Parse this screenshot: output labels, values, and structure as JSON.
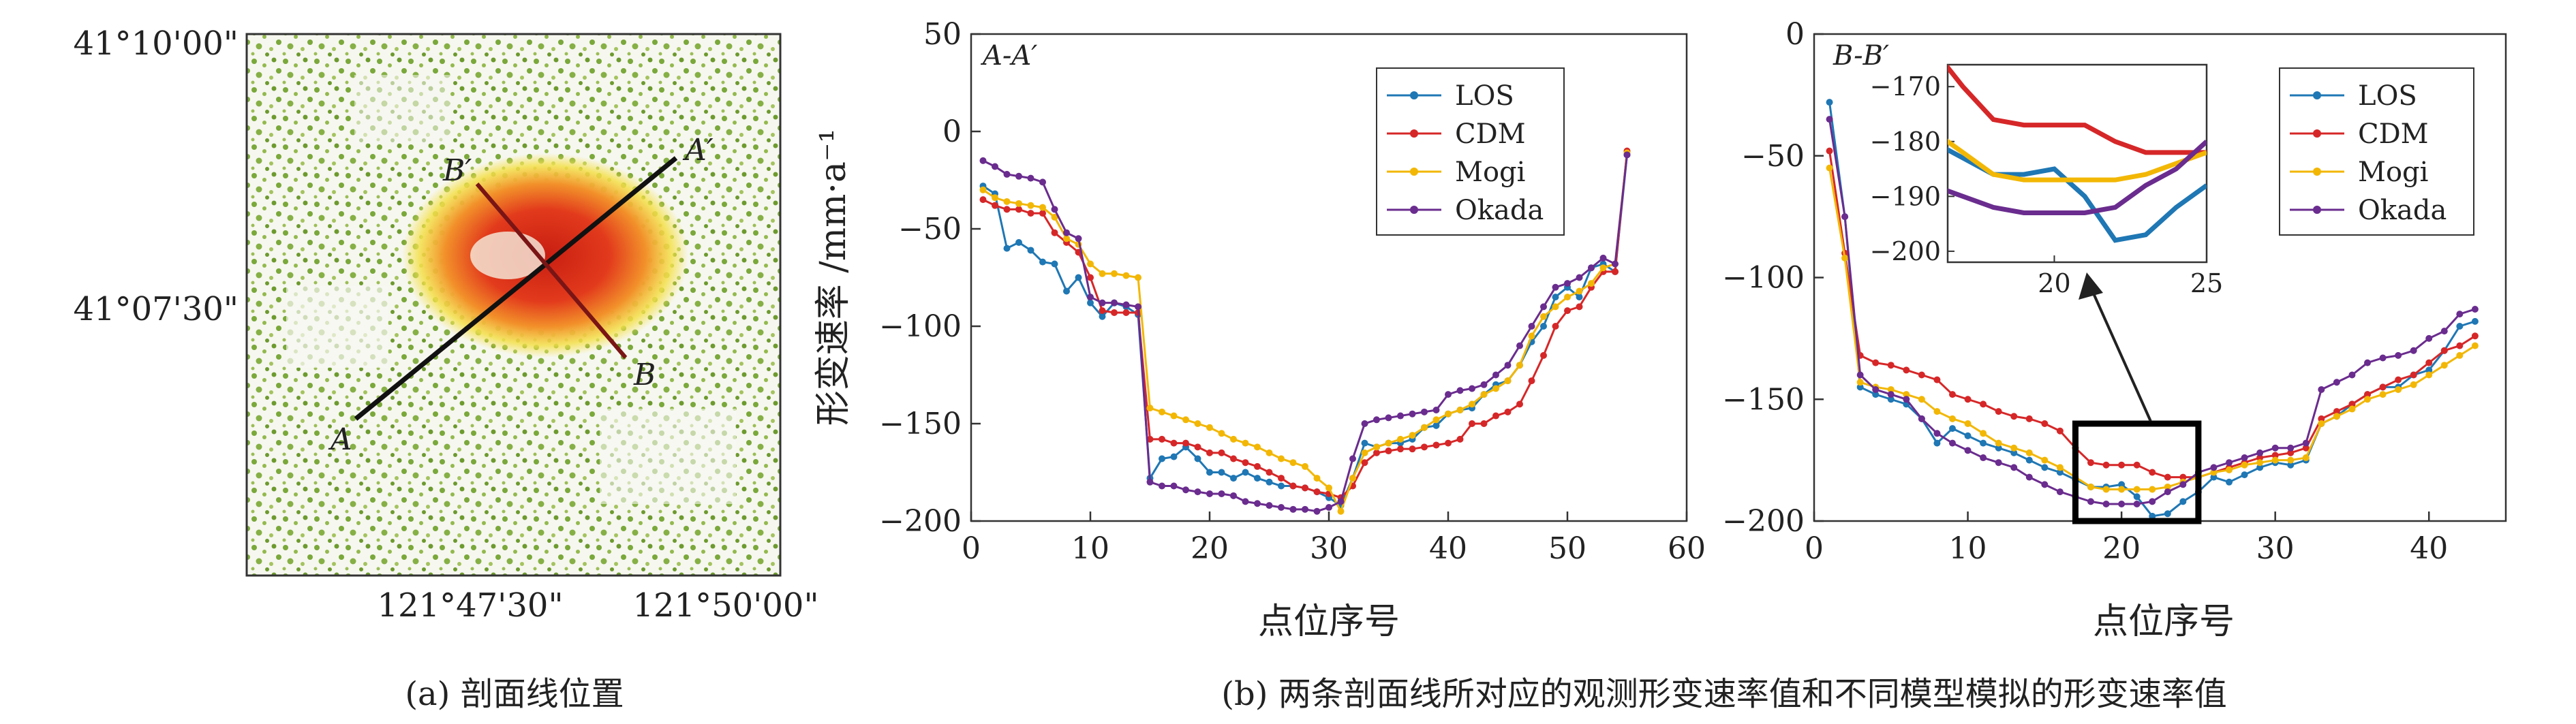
{
  "panel_a": {
    "caption": "(a) 剖面线位置",
    "lat_labels": [
      "41°10'00\"",
      "41°07'30\""
    ],
    "lon_labels": [
      "121°47'30\"",
      "121°50'00\""
    ],
    "profile_labels": {
      "A": "A",
      "A_prime": "A′",
      "B": "B",
      "B_prime": "B′"
    }
  },
  "caption_b": "(b) 两条剖面线所对应的观测形变速率值和不同模型模拟的形变速率值",
  "colors": {
    "LOS": "#1f77b4",
    "CDM": "#d62728",
    "Mogi": "#f2b705",
    "Okada": "#6a2c8e",
    "zoom_box": "#000000"
  },
  "chart_data": [
    {
      "type": "line",
      "title": "A-A′",
      "xlabel": "点位序号",
      "ylabel": "形变速率 /mm·a⁻¹",
      "xlim": [
        0,
        60
      ],
      "ylim": [
        -200,
        50
      ],
      "xticks": [
        0,
        10,
        20,
        30,
        40,
        50,
        60
      ],
      "yticks": [
        50,
        0,
        -50,
        -100,
        -150,
        -200
      ],
      "legend_position": "top-right",
      "x": [
        1,
        2,
        3,
        4,
        5,
        6,
        7,
        8,
        9,
        10,
        11,
        12,
        13,
        14,
        15,
        16,
        17,
        18,
        19,
        20,
        21,
        22,
        23,
        24,
        25,
        26,
        27,
        28,
        29,
        30,
        31,
        32,
        33,
        34,
        35,
        36,
        37,
        38,
        39,
        40,
        41,
        42,
        43,
        44,
        45,
        46,
        47,
        48,
        49,
        50,
        51,
        52,
        53,
        54,
        55
      ],
      "series": [
        {
          "name": "LOS",
          "values": [
            -28,
            -32,
            -60,
            -57,
            -61,
            -67,
            -68,
            -82,
            -75,
            -88,
            -95,
            -88,
            -90,
            -94,
            -178,
            -168,
            -167,
            -162,
            -168,
            -175,
            -175,
            -178,
            -175,
            -178,
            -180,
            -182,
            -182,
            -183,
            -185,
            -188,
            -192,
            -178,
            -160,
            -162,
            -160,
            -160,
            -158,
            -152,
            -151,
            -145,
            -143,
            -142,
            -135,
            -130,
            -128,
            -120,
            -108,
            -100,
            -85,
            -80,
            -85,
            -70,
            -68,
            -72,
            -12
          ]
        },
        {
          "name": "CDM",
          "values": [
            -35,
            -38,
            -40,
            -40,
            -42,
            -42,
            -52,
            -57,
            -62,
            -75,
            -92,
            -93,
            -93,
            -93,
            -158,
            -158,
            -160,
            -160,
            -162,
            -165,
            -165,
            -168,
            -170,
            -172,
            -175,
            -178,
            -182,
            -183,
            -185,
            -186,
            -188,
            -182,
            -170,
            -165,
            -164,
            -163,
            -163,
            -162,
            -161,
            -160,
            -158,
            -150,
            -150,
            -146,
            -144,
            -140,
            -128,
            -115,
            -100,
            -92,
            -90,
            -80,
            -72,
            -72,
            -10
          ]
        },
        {
          "name": "Mogi",
          "values": [
            -30,
            -34,
            -36,
            -37,
            -38,
            -39,
            -44,
            -55,
            -58,
            -68,
            -73,
            -73,
            -74,
            -75,
            -142,
            -144,
            -146,
            -148,
            -150,
            -152,
            -155,
            -158,
            -160,
            -162,
            -165,
            -168,
            -170,
            -172,
            -178,
            -183,
            -195,
            -178,
            -165,
            -162,
            -160,
            -158,
            -156,
            -152,
            -148,
            -145,
            -143,
            -140,
            -135,
            -132,
            -128,
            -120,
            -105,
            -95,
            -90,
            -85,
            -82,
            -78,
            -70,
            -68,
            -11
          ]
        },
        {
          "name": "Okada",
          "values": [
            -15,
            -18,
            -22,
            -23,
            -24,
            -26,
            -40,
            -52,
            -55,
            -85,
            -88,
            -88,
            -89,
            -90,
            -180,
            -182,
            -182,
            -184,
            -185,
            -186,
            -186,
            -187,
            -190,
            -191,
            -192,
            -193,
            -194,
            -194,
            -195,
            -193,
            -190,
            -168,
            -150,
            -148,
            -147,
            -146,
            -145,
            -144,
            -143,
            -135,
            -133,
            -132,
            -130,
            -125,
            -120,
            -110,
            -100,
            -90,
            -80,
            -78,
            -75,
            -70,
            -65,
            -68,
            -12
          ]
        }
      ]
    },
    {
      "type": "line",
      "title": "B-B′",
      "xlabel": "点位序号",
      "xlim": [
        0,
        45
      ],
      "ylim": [
        -200,
        0
      ],
      "xticks": [
        0,
        10,
        20,
        30,
        40
      ],
      "yticks": [
        0,
        -50,
        -100,
        -150,
        -200
      ],
      "legend_position": "top-right",
      "zoom_region": {
        "x": [
          17,
          25
        ],
        "y": [
          -200,
          -160
        ]
      },
      "inset": {
        "xlim": [
          16.5,
          25
        ],
        "ylim": [
          -202,
          -166
        ],
        "xticks": [
          20,
          25
        ],
        "yticks": [
          -170,
          -180,
          -190,
          -200
        ]
      },
      "x": [
        1,
        2,
        3,
        4,
        5,
        6,
        7,
        8,
        9,
        10,
        11,
        12,
        13,
        14,
        15,
        16,
        17,
        18,
        19,
        20,
        21,
        22,
        23,
        24,
        25,
        26,
        27,
        28,
        29,
        30,
        31,
        32,
        33,
        34,
        35,
        36,
        37,
        38,
        39,
        40,
        41,
        42,
        43
      ],
      "series": [
        {
          "name": "LOS",
          "values": [
            -28,
            -75,
            -145,
            -148,
            -150,
            -152,
            -158,
            -168,
            -162,
            -165,
            -168,
            -170,
            -172,
            -175,
            -178,
            -180,
            -183,
            -186,
            -186,
            -185,
            -190,
            -198,
            -197,
            -192,
            -188,
            -182,
            -184,
            -181,
            -178,
            -176,
            -177,
            -175,
            -160,
            -157,
            -152,
            -148,
            -145,
            -145,
            -140,
            -138,
            -130,
            -120,
            -118
          ]
        },
        {
          "name": "CDM",
          "values": [
            -48,
            -90,
            -132,
            -135,
            -136,
            -138,
            -140,
            -142,
            -148,
            -150,
            -152,
            -155,
            -157,
            -158,
            -160,
            -163,
            -170,
            -176,
            -177,
            -177,
            -177,
            -180,
            -182,
            -182,
            -182,
            -180,
            -178,
            -176,
            -174,
            -173,
            -172,
            -170,
            -158,
            -155,
            -152,
            -148,
            -145,
            -142,
            -140,
            -135,
            -130,
            -128,
            -124
          ]
        },
        {
          "name": "Mogi",
          "values": [
            -55,
            -92,
            -143,
            -145,
            -146,
            -148,
            -150,
            -155,
            -158,
            -160,
            -164,
            -168,
            -170,
            -172,
            -175,
            -178,
            -182,
            -186,
            -187,
            -187,
            -187,
            -187,
            -186,
            -184,
            -182,
            -180,
            -179,
            -177,
            -176,
            -175,
            -175,
            -174,
            -160,
            -157,
            -154,
            -150,
            -148,
            -146,
            -144,
            -140,
            -136,
            -132,
            -128
          ]
        },
        {
          "name": "Okada",
          "values": [
            -35,
            -75,
            -140,
            -146,
            -148,
            -150,
            -158,
            -164,
            -168,
            -171,
            -174,
            -176,
            -178,
            -182,
            -185,
            -188,
            -190,
            -192,
            -193,
            -193,
            -193,
            -192,
            -188,
            -185,
            -180,
            -178,
            -176,
            -174,
            -172,
            -170,
            -170,
            -168,
            -146,
            -143,
            -140,
            -135,
            -133,
            -132,
            -130,
            -125,
            -122,
            -115,
            -113
          ]
        }
      ]
    }
  ]
}
